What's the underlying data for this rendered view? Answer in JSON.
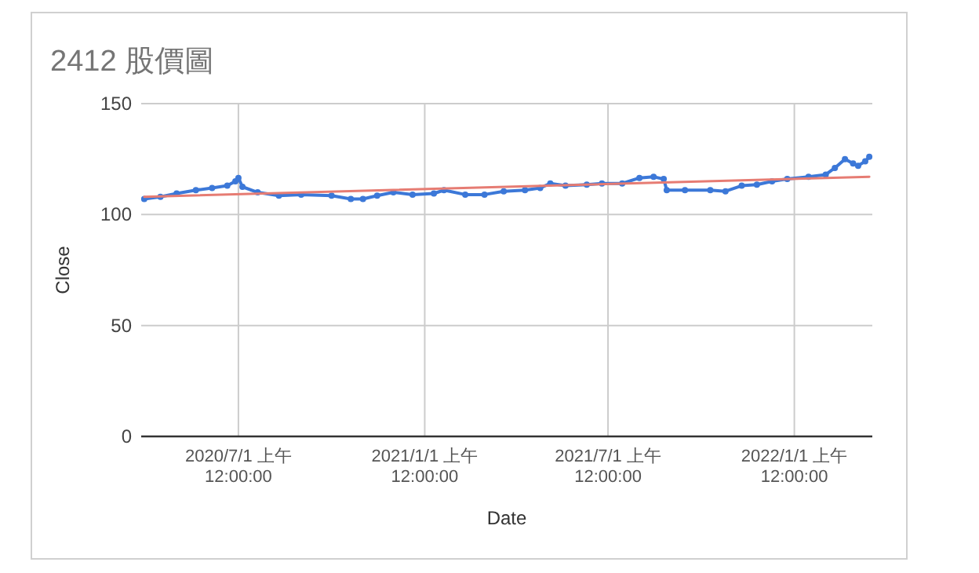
{
  "chart_data": {
    "type": "line",
    "title": "2412 股價圖",
    "xlabel": "Date",
    "ylabel": "Close",
    "xlim": [
      "2020-03-27",
      "2022-03-19"
    ],
    "xticks": [
      {
        "value": "2020-07-01",
        "label": "2020/7/1 上午 12:00:00"
      },
      {
        "value": "2021-01-01",
        "label": "2021/1/1 上午 12:00:00"
      },
      {
        "value": "2021-07-01",
        "label": "2021/7/1 上午 12:00:00"
      },
      {
        "value": "2022-01-01",
        "label": "2022/1/1 上午 12:00:00"
      }
    ],
    "ylim": [
      0,
      150
    ],
    "yticks": [
      0,
      50,
      100,
      150
    ],
    "grid": true,
    "marker": "circle",
    "series": [
      {
        "color": "#3c78d8",
        "x": [
          "2020-03-30",
          "2020-04-15",
          "2020-05-01",
          "2020-05-20",
          "2020-06-05",
          "2020-06-20",
          "2020-06-28",
          "2020-07-01",
          "2020-07-05",
          "2020-07-20",
          "2020-08-10",
          "2020-09-01",
          "2020-10-01",
          "2020-10-20",
          "2020-11-01",
          "2020-11-15",
          "2020-12-01",
          "2020-12-20",
          "2021-01-10",
          "2021-01-20",
          "2021-02-10",
          "2021-03-01",
          "2021-03-20",
          "2021-04-10",
          "2021-04-25",
          "2021-05-05",
          "2021-05-20",
          "2021-06-10",
          "2021-06-25",
          "2021-07-15",
          "2021-08-01",
          "2021-08-15",
          "2021-08-25",
          "2021-08-28",
          "2021-09-15",
          "2021-10-10",
          "2021-10-25",
          "2021-11-10",
          "2021-11-25",
          "2021-12-10",
          "2021-12-25",
          "2022-01-15",
          "2022-02-01",
          "2022-02-10",
          "2022-02-20",
          "2022-02-28",
          "2022-03-05",
          "2022-03-12",
          "2022-03-16"
        ],
        "values": [
          107,
          108,
          109.5,
          111,
          112,
          113,
          115,
          116.5,
          112.5,
          110,
          108.5,
          109,
          108.5,
          107,
          107,
          108.5,
          110,
          109,
          109.5,
          111,
          109,
          109,
          110.5,
          111,
          112,
          114,
          113,
          113.5,
          114,
          114,
          116.5,
          117,
          116,
          111,
          111,
          111,
          110.5,
          113,
          113.5,
          115,
          116,
          117,
          118,
          121,
          125,
          123,
          122,
          124,
          126
        ]
      },
      {
        "type": "line",
        "marker": "none",
        "color": "#e67c73",
        "x": [
          "2020-03-30",
          "2022-03-16"
        ],
        "values": [
          108,
          117
        ]
      }
    ]
  }
}
